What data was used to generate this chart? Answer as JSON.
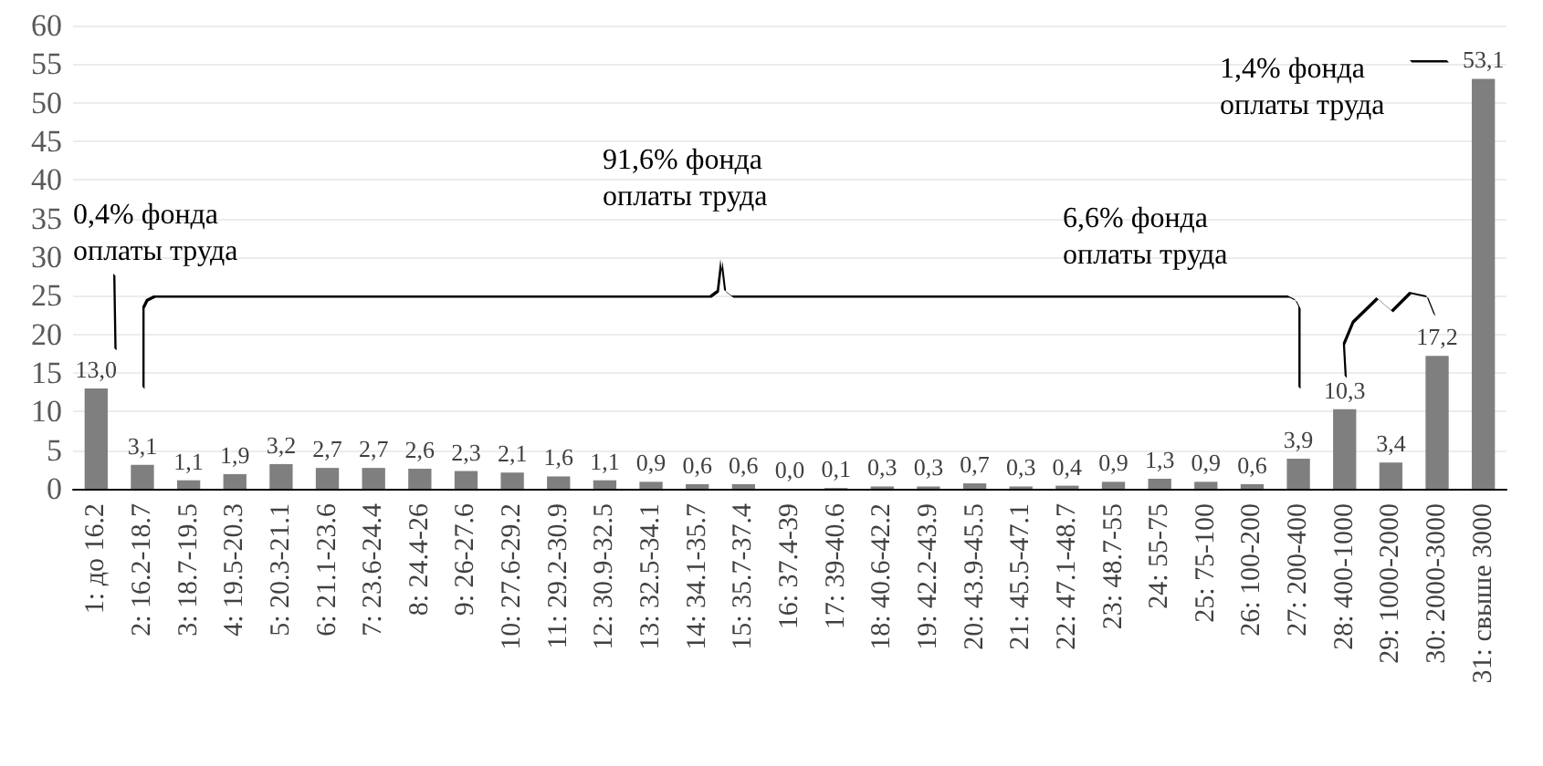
{
  "chart_data": {
    "type": "bar",
    "categories": [
      "1: до 16.2",
      "2: 16.2-18.7",
      "3: 18.7-19.5",
      "4: 19.5-20.3",
      "5: 20.3-21.1",
      "6: 21.1-23.6",
      "7: 23.6-24.4",
      "8: 24.4-26",
      "9: 26-27.6",
      "10: 27.6-29.2",
      "11: 29.2-30.9",
      "12: 30.9-32.5",
      "13: 32.5-34.1",
      "14: 34.1-35.7",
      "15: 35.7-37.4",
      "16: 37.4-39",
      "17: 39-40.6",
      "18: 40.6-42.2",
      "19: 42.2-43.9",
      "20: 43.9-45.5",
      "21: 45.5-47.1",
      "22: 47.1-48.7",
      "23: 48.7-55",
      "24: 55-75",
      "25: 75-100",
      "26: 100-200",
      "27: 200-400",
      "28: 400-1000",
      "29: 1000-2000",
      "30: 2000-3000",
      "31: свыше 3000"
    ],
    "values": [
      13.0,
      3.1,
      1.1,
      1.9,
      3.2,
      2.7,
      2.7,
      2.6,
      2.3,
      2.1,
      1.6,
      1.1,
      0.9,
      0.6,
      0.6,
      0.0,
      0.1,
      0.3,
      0.3,
      0.7,
      0.3,
      0.4,
      0.9,
      1.3,
      0.9,
      0.6,
      3.9,
      10.3,
      3.4,
      17.2,
      53.1
    ],
    "value_labels": [
      "13,0",
      "3,1",
      "1,1",
      "1,9",
      "3,2",
      "2,7",
      "2,7",
      "2,6",
      "2,3",
      "2,1",
      "1,6",
      "1,1",
      "0,9",
      "0,6",
      "0,6",
      "0,0",
      "0,1",
      "0,3",
      "0,3",
      "0,7",
      "0,3",
      "0,4",
      "0,9",
      "1,3",
      "0,9",
      "0,6",
      "3,9",
      "10,3",
      "3,4",
      "17,2",
      "53,1"
    ],
    "color": "#7f7f7f",
    "ylim": [
      0,
      60
    ],
    "yticks": [
      0,
      5,
      10,
      15,
      20,
      25,
      30,
      35,
      40,
      45,
      50,
      55,
      60
    ],
    "grid": "y",
    "annotations": [
      "0,4% фонда\nоплаты труда",
      "91,6% фонда\nоплаты труда",
      "6,6% фонда\nоплаты труда",
      "1,4% фонда\nоплаты труда"
    ]
  }
}
